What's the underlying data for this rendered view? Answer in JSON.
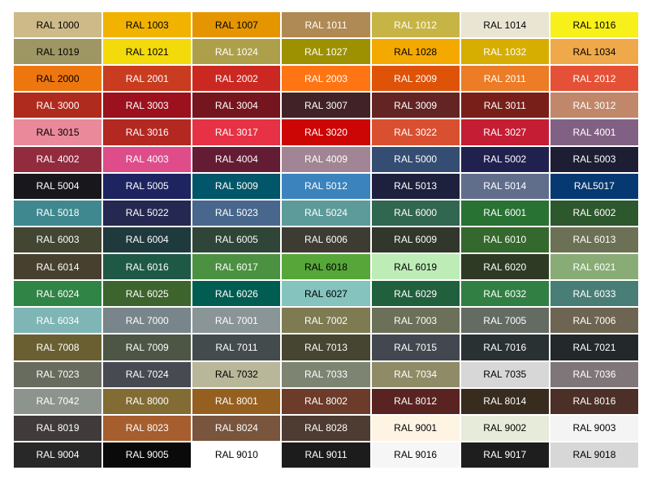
{
  "page": {
    "background": "#FFFFFF"
  },
  "chart_data": {
    "type": "table",
    "rows": 17,
    "columns": 7,
    "cells": [
      {
        "label": "RAL 1000",
        "bg": "#CDBA88",
        "fg": "#000000"
      },
      {
        "label": "RAL 1003",
        "bg": "#F2B200",
        "fg": "#000000"
      },
      {
        "label": "RAL 1007",
        "bg": "#E59500",
        "fg": "#000000"
      },
      {
        "label": "RAL 1011",
        "bg": "#AF8A54",
        "fg": "#FFFFFF"
      },
      {
        "label": "RAL 1012",
        "bg": "#C7B446",
        "fg": "#FFFFFF"
      },
      {
        "label": "RAL 1014",
        "bg": "#EAE5D3",
        "fg": "#000000"
      },
      {
        "label": "RAL 1016",
        "bg": "#F7F01A",
        "fg": "#000000"
      },
      {
        "label": "RAL 1019",
        "bg": "#9E9764",
        "fg": "#000000"
      },
      {
        "label": "RAL 1021",
        "bg": "#F3DA0B",
        "fg": "#000000"
      },
      {
        "label": "RAL 1024",
        "bg": "#AEA04B",
        "fg": "#FFFFFF"
      },
      {
        "label": "RAL 1027",
        "bg": "#9D9101",
        "fg": "#FFFFFF"
      },
      {
        "label": "RAL 1028",
        "bg": "#F4A900",
        "fg": "#000000"
      },
      {
        "label": "RAL 1032",
        "bg": "#D6AE01",
        "fg": "#FFFFFF"
      },
      {
        "label": "RAL 1034",
        "bg": "#EFA94A",
        "fg": "#000000"
      },
      {
        "label": "RAL 2000",
        "bg": "#ED760E",
        "fg": "#000000"
      },
      {
        "label": "RAL 2001",
        "bg": "#C93C20",
        "fg": "#FFFFFF"
      },
      {
        "label": "RAL 2002",
        "bg": "#CB2821",
        "fg": "#FFFFFF"
      },
      {
        "label": "RAL 2003",
        "bg": "#FF7514",
        "fg": "#FFFFFF"
      },
      {
        "label": "RAL 2009",
        "bg": "#DE5308",
        "fg": "#FFFFFF"
      },
      {
        "label": "RAL 2011",
        "bg": "#EC7C26",
        "fg": "#FFFFFF"
      },
      {
        "label": "RAL 2012",
        "bg": "#E55137",
        "fg": "#FFFFFF"
      },
      {
        "label": "RAL 3000",
        "bg": "#AF2B1E",
        "fg": "#FFFFFF"
      },
      {
        "label": "RAL 3003",
        "bg": "#9B111E",
        "fg": "#FFFFFF"
      },
      {
        "label": "RAL 3004",
        "bg": "#75151E",
        "fg": "#FFFFFF"
      },
      {
        "label": "RAL 3007",
        "bg": "#412227",
        "fg": "#FFFFFF"
      },
      {
        "label": "RAL 3009",
        "bg": "#642424",
        "fg": "#FFFFFF"
      },
      {
        "label": "RAL 3011",
        "bg": "#781F19",
        "fg": "#FFFFFF"
      },
      {
        "label": "RAL 3012",
        "bg": "#C1876B",
        "fg": "#FFFFFF"
      },
      {
        "label": "RAL 3015",
        "bg": "#EA899A",
        "fg": "#000000"
      },
      {
        "label": "RAL 3016",
        "bg": "#B32821",
        "fg": "#FFFFFF"
      },
      {
        "label": "RAL 3017",
        "bg": "#E63244",
        "fg": "#FFFFFF"
      },
      {
        "label": "RAL 3020",
        "bg": "#CC0605",
        "fg": "#FFFFFF"
      },
      {
        "label": "RAL 3022",
        "bg": "#D95030",
        "fg": "#FFFFFF"
      },
      {
        "label": "RAL 3027",
        "bg": "#C51D34",
        "fg": "#FFFFFF"
      },
      {
        "label": "RAL 4001",
        "bg": "#816183",
        "fg": "#FFFFFF"
      },
      {
        "label": "RAL 4002",
        "bg": "#922B3E",
        "fg": "#FFFFFF"
      },
      {
        "label": "RAL 4003",
        "bg": "#DE4C8A",
        "fg": "#FFFFFF"
      },
      {
        "label": "RAL 4004",
        "bg": "#641C34",
        "fg": "#FFFFFF"
      },
      {
        "label": "RAL 4009",
        "bg": "#A18594",
        "fg": "#FFFFFF"
      },
      {
        "label": "RAL 5000",
        "bg": "#354D73",
        "fg": "#FFFFFF"
      },
      {
        "label": "RAL 5002",
        "bg": "#20214F",
        "fg": "#FFFFFF"
      },
      {
        "label": "RAL 5003",
        "bg": "#1D1E33",
        "fg": "#FFFFFF"
      },
      {
        "label": "RAL 5004",
        "bg": "#18171C",
        "fg": "#FFFFFF"
      },
      {
        "label": "RAL 5005",
        "bg": "#1E2460",
        "fg": "#FFFFFF"
      },
      {
        "label": "RAL 5009",
        "bg": "#025669",
        "fg": "#FFFFFF"
      },
      {
        "label": "RAL 5012",
        "bg": "#3B83BD",
        "fg": "#FFFFFF"
      },
      {
        "label": "RAL 5013",
        "bg": "#1E213D",
        "fg": "#FFFFFF"
      },
      {
        "label": "RAL 5014",
        "bg": "#606E8C",
        "fg": "#FFFFFF"
      },
      {
        "label": "RAL5017",
        "bg": "#063971",
        "fg": "#FFFFFF"
      },
      {
        "label": "RAL 5018",
        "bg": "#3F888F",
        "fg": "#FFFFFF"
      },
      {
        "label": "RAL 5022",
        "bg": "#252850",
        "fg": "#FFFFFF"
      },
      {
        "label": "RAL 5023",
        "bg": "#49678D",
        "fg": "#FFFFFF"
      },
      {
        "label": "RAL 5024",
        "bg": "#5D9B9B",
        "fg": "#FFFFFF"
      },
      {
        "label": "RAL 6000",
        "bg": "#316650",
        "fg": "#FFFFFF"
      },
      {
        "label": "RAL 6001",
        "bg": "#287233",
        "fg": "#FFFFFF"
      },
      {
        "label": "RAL 6002",
        "bg": "#2D572C",
        "fg": "#FFFFFF"
      },
      {
        "label": "RAL 6003",
        "bg": "#424632",
        "fg": "#FFFFFF"
      },
      {
        "label": "RAL 6004",
        "bg": "#1F3A3D",
        "fg": "#FFFFFF"
      },
      {
        "label": "RAL 6005",
        "bg": "#2F4538",
        "fg": "#FFFFFF"
      },
      {
        "label": "RAL 6006",
        "bg": "#3E3B32",
        "fg": "#FFFFFF"
      },
      {
        "label": "RAL 6009",
        "bg": "#31372B",
        "fg": "#FFFFFF"
      },
      {
        "label": "RAL 6010",
        "bg": "#35682D",
        "fg": "#FFFFFF"
      },
      {
        "label": "RAL 6013",
        "bg": "#6C7156",
        "fg": "#FFFFFF"
      },
      {
        "label": "RAL 6014",
        "bg": "#47402E",
        "fg": "#FFFFFF"
      },
      {
        "label": "RAL 6016",
        "bg": "#1E5945",
        "fg": "#FFFFFF"
      },
      {
        "label": "RAL 6017",
        "bg": "#4C9141",
        "fg": "#FFFFFF"
      },
      {
        "label": "RAL 6018",
        "bg": "#57A639",
        "fg": "#000000"
      },
      {
        "label": "RAL 6019",
        "bg": "#BDECB6",
        "fg": "#000000"
      },
      {
        "label": "RAL 6020",
        "bg": "#2E3A23",
        "fg": "#FFFFFF"
      },
      {
        "label": "RAL 6021",
        "bg": "#89AC76",
        "fg": "#FFFFFF"
      },
      {
        "label": "RAL 6024",
        "bg": "#308446",
        "fg": "#FFFFFF"
      },
      {
        "label": "RAL 6025",
        "bg": "#3D642D",
        "fg": "#FFFFFF"
      },
      {
        "label": "RAL 6026",
        "bg": "#015D52",
        "fg": "#FFFFFF"
      },
      {
        "label": "RAL 6027",
        "bg": "#84C3BE",
        "fg": "#000000"
      },
      {
        "label": "RAL 6029",
        "bg": "#20603D",
        "fg": "#FFFFFF"
      },
      {
        "label": "RAL 6032",
        "bg": "#317F43",
        "fg": "#FFFFFF"
      },
      {
        "label": "RAL 6033",
        "bg": "#497E76",
        "fg": "#FFFFFF"
      },
      {
        "label": "RAL 6034",
        "bg": "#7FB5B5",
        "fg": "#FFFFFF"
      },
      {
        "label": "RAL 7000",
        "bg": "#78858B",
        "fg": "#FFFFFF"
      },
      {
        "label": "RAL 7001",
        "bg": "#8A9597",
        "fg": "#FFFFFF"
      },
      {
        "label": "RAL 7002",
        "bg": "#7E7B52",
        "fg": "#FFFFFF"
      },
      {
        "label": "RAL 7003",
        "bg": "#6C7059",
        "fg": "#FFFFFF"
      },
      {
        "label": "RAL 7005",
        "bg": "#646B63",
        "fg": "#FFFFFF"
      },
      {
        "label": "RAL 7006",
        "bg": "#6D6552",
        "fg": "#FFFFFF"
      },
      {
        "label": "RAL 7008",
        "bg": "#6A5F31",
        "fg": "#FFFFFF"
      },
      {
        "label": "RAL 7009",
        "bg": "#4D5645",
        "fg": "#FFFFFF"
      },
      {
        "label": "RAL 7011",
        "bg": "#434B4D",
        "fg": "#FFFFFF"
      },
      {
        "label": "RAL 7013",
        "bg": "#464531",
        "fg": "#FFFFFF"
      },
      {
        "label": "RAL 7015",
        "bg": "#434750",
        "fg": "#FFFFFF"
      },
      {
        "label": "RAL 7016",
        "bg": "#293133",
        "fg": "#FFFFFF"
      },
      {
        "label": "RAL 7021",
        "bg": "#23282B",
        "fg": "#FFFFFF"
      },
      {
        "label": "RAL 7023",
        "bg": "#686C5E",
        "fg": "#FFFFFF"
      },
      {
        "label": "RAL 7024",
        "bg": "#474A51",
        "fg": "#FFFFFF"
      },
      {
        "label": "RAL 7032",
        "bg": "#B8B799",
        "fg": "#000000"
      },
      {
        "label": "RAL 7033",
        "bg": "#7D8471",
        "fg": "#FFFFFF"
      },
      {
        "label": "RAL 7034",
        "bg": "#8F8B66",
        "fg": "#FFFFFF"
      },
      {
        "label": "RAL 7035",
        "bg": "#D7D7D7",
        "fg": "#000000"
      },
      {
        "label": "RAL 7036",
        "bg": "#7F7679",
        "fg": "#FFFFFF"
      },
      {
        "label": "RAL 7042",
        "bg": "#8D948D",
        "fg": "#FFFFFF"
      },
      {
        "label": "RAL 8000",
        "bg": "#826C34",
        "fg": "#FFFFFF"
      },
      {
        "label": "RAL 8001",
        "bg": "#955F20",
        "fg": "#FFFFFF"
      },
      {
        "label": "RAL 8002",
        "bg": "#6C3B2A",
        "fg": "#FFFFFF"
      },
      {
        "label": "RAL 8012",
        "bg": "#592321",
        "fg": "#FFFFFF"
      },
      {
        "label": "RAL 8014",
        "bg": "#382C1E",
        "fg": "#FFFFFF"
      },
      {
        "label": "RAL 8016",
        "bg": "#4C2F27",
        "fg": "#FFFFFF"
      },
      {
        "label": "RAL 8019",
        "bg": "#403A3A",
        "fg": "#FFFFFF"
      },
      {
        "label": "RAL 8023",
        "bg": "#A65E2E",
        "fg": "#FFFFFF"
      },
      {
        "label": "RAL 8024",
        "bg": "#79553D",
        "fg": "#FFFFFF"
      },
      {
        "label": "RAL 8028",
        "bg": "#4E3B31",
        "fg": "#FFFFFF"
      },
      {
        "label": "RAL 9001",
        "bg": "#FDF4E3",
        "fg": "#000000"
      },
      {
        "label": "RAL 9002",
        "bg": "#E7EBDA",
        "fg": "#000000"
      },
      {
        "label": "RAL 9003",
        "bg": "#F4F4F4",
        "fg": "#000000"
      },
      {
        "label": "RAL 9004",
        "bg": "#282828",
        "fg": "#FFFFFF"
      },
      {
        "label": "RAL 9005",
        "bg": "#0A0A0A",
        "fg": "#FFFFFF"
      },
      {
        "label": "RAL 9010",
        "bg": "#FFFFFF",
        "fg": "#000000"
      },
      {
        "label": "RAL 9011",
        "bg": "#1C1C1C",
        "fg": "#FFFFFF"
      },
      {
        "label": "RAL 9016",
        "bg": "#F6F6F6",
        "fg": "#000000"
      },
      {
        "label": "RAL 9017",
        "bg": "#1E1E1E",
        "fg": "#FFFFFF"
      },
      {
        "label": "RAL 9018",
        "bg": "#D7D7D7",
        "fg": "#000000"
      }
    ]
  }
}
